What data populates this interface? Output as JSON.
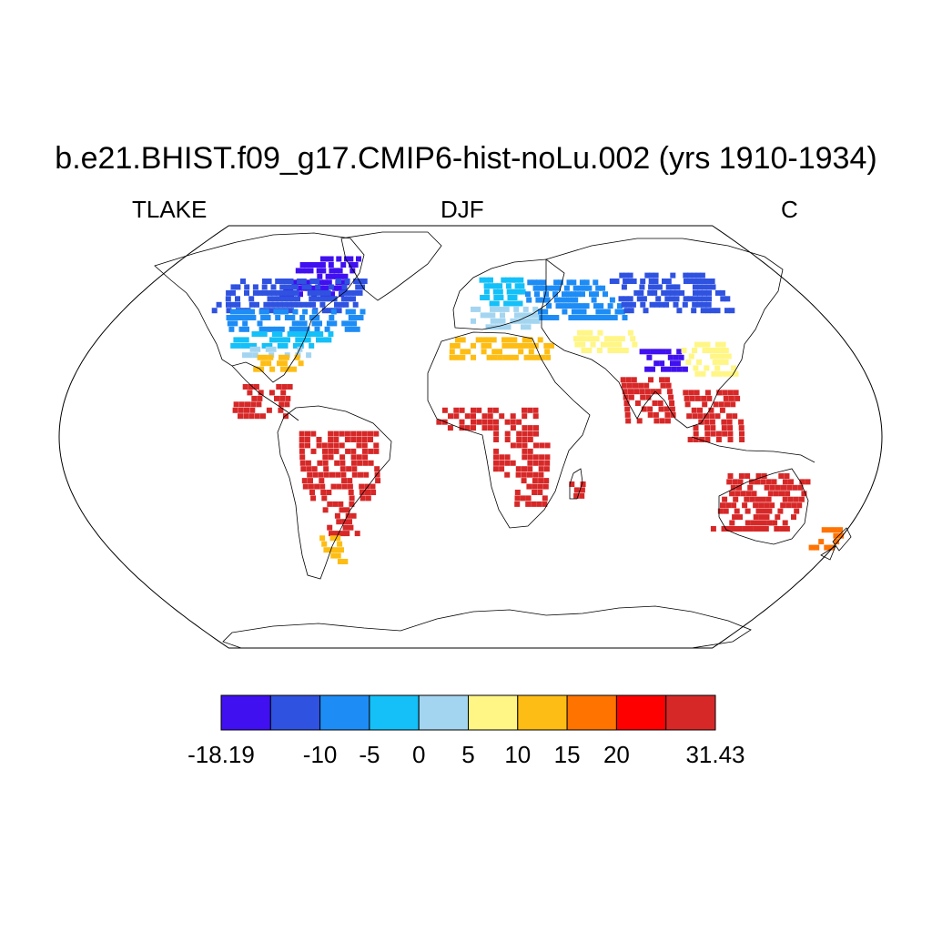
{
  "title": "b.e21.BHIST.f09_g17.CMIP6-hist-noLu.002 (yrs 1910-1934)",
  "left_label": "TLAKE",
  "center_label": "DJF",
  "right_label": "C",
  "colorbar": {
    "bins": [
      {
        "color": "#4010f0"
      },
      {
        "color": "#2f52e0"
      },
      {
        "color": "#1e8cf5"
      },
      {
        "color": "#14c0f7"
      },
      {
        "color": "#a4d5f0"
      },
      {
        "color": "#fff685"
      },
      {
        "color": "#fdbd14"
      },
      {
        "color": "#ff7300"
      },
      {
        "color": "#ff0000"
      },
      {
        "color": "#d72828"
      }
    ],
    "labels": [
      {
        "text": "-18.19",
        "boundary": 0
      },
      {
        "text": "-10",
        "boundary": 2
      },
      {
        "text": "-5",
        "boundary": 3
      },
      {
        "text": "0",
        "boundary": 4
      },
      {
        "text": "5",
        "boundary": 5
      },
      {
        "text": "10",
        "boundary": 6
      },
      {
        "text": "15",
        "boundary": 7
      },
      {
        "text": "20",
        "boundary": 8
      },
      {
        "text": "31.43",
        "boundary": 10
      }
    ]
  },
  "regions": [
    {
      "name": "canadian-arctic",
      "color": "#4010f0",
      "lon": [
        -105,
        -70
      ],
      "lat": [
        62,
        78
      ]
    },
    {
      "name": "canada-north",
      "color": "#2f52e0",
      "lon": [
        -135,
        -60
      ],
      "lat": [
        55,
        70
      ]
    },
    {
      "name": "canada-south",
      "color": "#1e8cf5",
      "lon": [
        -125,
        -55
      ],
      "lat": [
        47,
        56
      ]
    },
    {
      "name": "us-north",
      "color": "#14c0f7",
      "lon": [
        -115,
        -68
      ],
      "lat": [
        40,
        47
      ]
    },
    {
      "name": "us-central",
      "color": "#a4d5f0",
      "lon": [
        -110,
        -75
      ],
      "lat": [
        36,
        40
      ]
    },
    {
      "name": "us-south",
      "color": "#fdbd14",
      "lon": [
        -100,
        -78
      ],
      "lat": [
        30,
        36
      ]
    },
    {
      "name": "mexico-central-america",
      "color": "#d72828",
      "lon": [
        -105,
        -80
      ],
      "lat": [
        10,
        25
      ]
    },
    {
      "name": "amazon",
      "color": "#d72828",
      "lon": [
        -75,
        -40
      ],
      "lat": [
        -25,
        5
      ]
    },
    {
      "name": "south-america-south",
      "color": "#d72828",
      "lon": [
        -68,
        -55
      ],
      "lat": [
        -40,
        -25
      ]
    },
    {
      "name": "patagonia",
      "color": "#fdbd14",
      "lon": [
        -73,
        -65
      ],
      "lat": [
        -52,
        -40
      ]
    },
    {
      "name": "scandinavia",
      "color": "#14c0f7",
      "lon": [
        5,
        30
      ],
      "lat": [
        58,
        70
      ]
    },
    {
      "name": "europe-central",
      "color": "#a4d5f0",
      "lon": [
        0,
        35
      ],
      "lat": [
        48,
        56
      ]
    },
    {
      "name": "mediterranean",
      "color": "#fdbd14",
      "lon": [
        -10,
        40
      ],
      "lat": [
        35,
        44
      ]
    },
    {
      "name": "russia-west",
      "color": "#1e8cf5",
      "lon": [
        30,
        80
      ],
      "lat": [
        52,
        68
      ]
    },
    {
      "name": "siberia",
      "color": "#2f52e0",
      "lon": [
        80,
        140
      ],
      "lat": [
        55,
        72
      ]
    },
    {
      "name": "central-asia",
      "color": "#fff685",
      "lon": [
        50,
        80
      ],
      "lat": [
        38,
        48
      ]
    },
    {
      "name": "tibet",
      "color": "#4010f0",
      "lon": [
        80,
        100
      ],
      "lat": [
        30,
        38
      ]
    },
    {
      "name": "china-east",
      "color": "#fff685",
      "lon": [
        100,
        122
      ],
      "lat": [
        28,
        42
      ]
    },
    {
      "name": "india",
      "color": "#d72828",
      "lon": [
        68,
        90
      ],
      "lat": [
        8,
        28
      ]
    },
    {
      "name": "southeast-asia",
      "color": "#d72828",
      "lon": [
        95,
        120
      ],
      "lat": [
        0,
        22
      ]
    },
    {
      "name": "sahel",
      "color": "#d72828",
      "lon": [
        -15,
        30
      ],
      "lat": [
        5,
        15
      ]
    },
    {
      "name": "congo-basin",
      "color": "#d72828",
      "lon": [
        10,
        35
      ],
      "lat": [
        -15,
        5
      ]
    },
    {
      "name": "southern-africa",
      "color": "#d72828",
      "lon": [
        20,
        35
      ],
      "lat": [
        -30,
        -15
      ]
    },
    {
      "name": "madagascar",
      "color": "#d72828",
      "lon": [
        44,
        50
      ],
      "lat": [
        -24,
        -14
      ]
    },
    {
      "name": "australia",
      "color": "#d72828",
      "lon": [
        114,
        150
      ],
      "lat": [
        -38,
        -15
      ]
    },
    {
      "name": "new-zealand",
      "color": "#ff7300",
      "lon": [
        167,
        178
      ],
      "lat": [
        -46,
        -36
      ]
    }
  ]
}
